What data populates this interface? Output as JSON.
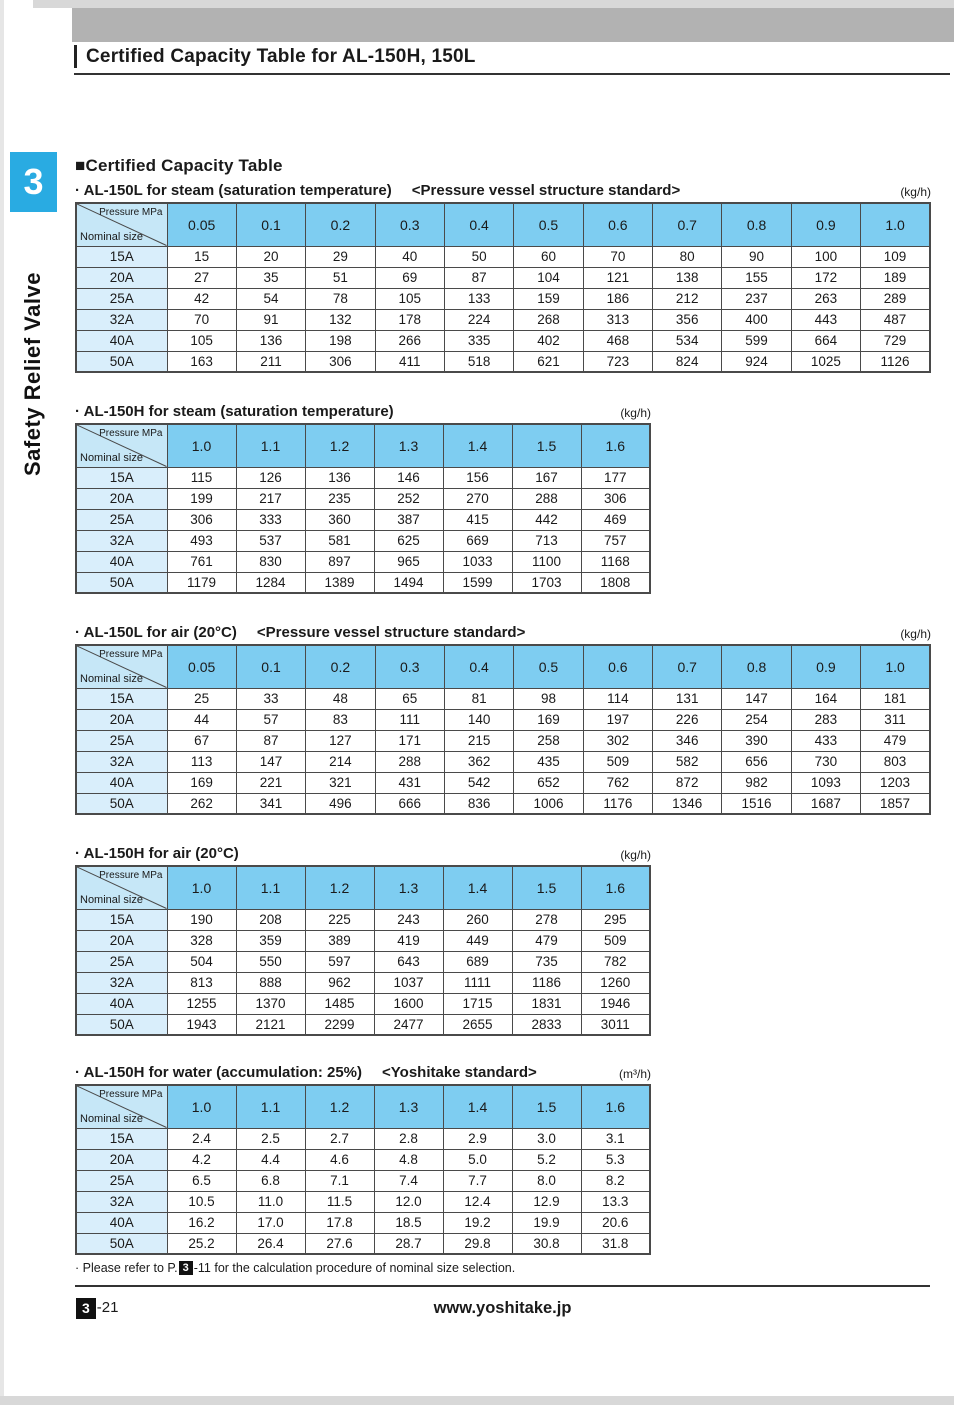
{
  "page_title": "Certified Capacity Table for AL-150H, 150L",
  "sidebar": {
    "chapter": "3",
    "label": "Safety Relief Valve"
  },
  "section_title": "■Certified Capacity Table",
  "table_header": {
    "top_label": "Pressure MPa",
    "bottom_label": "Nominal size"
  },
  "tables": [
    {
      "title": "· AL-150L for steam (saturation temperature)",
      "standard": "<Pressure vessel structure standard>",
      "unit": "(kg/h)",
      "wide": true,
      "columns": [
        "0.05",
        "0.1",
        "0.2",
        "0.3",
        "0.4",
        "0.5",
        "0.6",
        "0.7",
        "0.8",
        "0.9",
        "1.0"
      ],
      "rows": [
        {
          "size": "15A",
          "values": [
            "15",
            "20",
            "29",
            "40",
            "50",
            "60",
            "70",
            "80",
            "90",
            "100",
            "109"
          ]
        },
        {
          "size": "20A",
          "values": [
            "27",
            "35",
            "51",
            "69",
            "87",
            "104",
            "121",
            "138",
            "155",
            "172",
            "189"
          ]
        },
        {
          "size": "25A",
          "values": [
            "42",
            "54",
            "78",
            "105",
            "133",
            "159",
            "186",
            "212",
            "237",
            "263",
            "289"
          ]
        },
        {
          "size": "32A",
          "values": [
            "70",
            "91",
            "132",
            "178",
            "224",
            "268",
            "313",
            "356",
            "400",
            "443",
            "487"
          ]
        },
        {
          "size": "40A",
          "values": [
            "105",
            "136",
            "198",
            "266",
            "335",
            "402",
            "468",
            "534",
            "599",
            "664",
            "729"
          ]
        },
        {
          "size": "50A",
          "values": [
            "163",
            "211",
            "306",
            "411",
            "518",
            "621",
            "723",
            "824",
            "924",
            "1025",
            "1126"
          ]
        }
      ]
    },
    {
      "title": "· AL-150H for steam (saturation temperature)",
      "standard": "",
      "unit": "(kg/h)",
      "wide": false,
      "columns": [
        "1.0",
        "1.1",
        "1.2",
        "1.3",
        "1.4",
        "1.5",
        "1.6"
      ],
      "rows": [
        {
          "size": "15A",
          "values": [
            "115",
            "126",
            "136",
            "146",
            "156",
            "167",
            "177"
          ]
        },
        {
          "size": "20A",
          "values": [
            "199",
            "217",
            "235",
            "252",
            "270",
            "288",
            "306"
          ]
        },
        {
          "size": "25A",
          "values": [
            "306",
            "333",
            "360",
            "387",
            "415",
            "442",
            "469"
          ]
        },
        {
          "size": "32A",
          "values": [
            "493",
            "537",
            "581",
            "625",
            "669",
            "713",
            "757"
          ]
        },
        {
          "size": "40A",
          "values": [
            "761",
            "830",
            "897",
            "965",
            "1033",
            "1100",
            "1168"
          ]
        },
        {
          "size": "50A",
          "values": [
            "1179",
            "1284",
            "1389",
            "1494",
            "1599",
            "1703",
            "1808"
          ]
        }
      ]
    },
    {
      "title": "· AL-150L for air (20°C)",
      "standard": "<Pressure vessel structure standard>",
      "unit": "(kg/h)",
      "wide": true,
      "columns": [
        "0.05",
        "0.1",
        "0.2",
        "0.3",
        "0.4",
        "0.5",
        "0.6",
        "0.7",
        "0.8",
        "0.9",
        "1.0"
      ],
      "rows": [
        {
          "size": "15A",
          "values": [
            "25",
            "33",
            "48",
            "65",
            "81",
            "98",
            "114",
            "131",
            "147",
            "164",
            "181"
          ]
        },
        {
          "size": "20A",
          "values": [
            "44",
            "57",
            "83",
            "111",
            "140",
            "169",
            "197",
            "226",
            "254",
            "283",
            "311"
          ]
        },
        {
          "size": "25A",
          "values": [
            "67",
            "87",
            "127",
            "171",
            "215",
            "258",
            "302",
            "346",
            "390",
            "433",
            "479"
          ]
        },
        {
          "size": "32A",
          "values": [
            "113",
            "147",
            "214",
            "288",
            "362",
            "435",
            "509",
            "582",
            "656",
            "730",
            "803"
          ]
        },
        {
          "size": "40A",
          "values": [
            "169",
            "221",
            "321",
            "431",
            "542",
            "652",
            "762",
            "872",
            "982",
            "1093",
            "1203"
          ]
        },
        {
          "size": "50A",
          "values": [
            "262",
            "341",
            "496",
            "666",
            "836",
            "1006",
            "1176",
            "1346",
            "1516",
            "1687",
            "1857"
          ]
        }
      ]
    },
    {
      "title": "· AL-150H for air (20°C)",
      "standard": "",
      "unit": "(kg/h)",
      "wide": false,
      "columns": [
        "1.0",
        "1.1",
        "1.2",
        "1.3",
        "1.4",
        "1.5",
        "1.6"
      ],
      "rows": [
        {
          "size": "15A",
          "values": [
            "190",
            "208",
            "225",
            "243",
            "260",
            "278",
            "295"
          ]
        },
        {
          "size": "20A",
          "values": [
            "328",
            "359",
            "389",
            "419",
            "449",
            "479",
            "509"
          ]
        },
        {
          "size": "25A",
          "values": [
            "504",
            "550",
            "597",
            "643",
            "689",
            "735",
            "782"
          ]
        },
        {
          "size": "32A",
          "values": [
            "813",
            "888",
            "962",
            "1037",
            "1111",
            "1186",
            "1260"
          ]
        },
        {
          "size": "40A",
          "values": [
            "1255",
            "1370",
            "1485",
            "1600",
            "1715",
            "1831",
            "1946"
          ]
        },
        {
          "size": "50A",
          "values": [
            "1943",
            "2121",
            "2299",
            "2477",
            "2655",
            "2833",
            "3011"
          ]
        }
      ]
    },
    {
      "title": "· AL-150H for water (accumulation: 25%)",
      "standard": "<Yoshitake standard>",
      "unit": "(m³/h)",
      "wide": false,
      "columns": [
        "1.0",
        "1.1",
        "1.2",
        "1.3",
        "1.4",
        "1.5",
        "1.6"
      ],
      "rows": [
        {
          "size": "15A",
          "values": [
            "2.4",
            "2.5",
            "2.7",
            "2.8",
            "2.9",
            "3.0",
            "3.1"
          ]
        },
        {
          "size": "20A",
          "values": [
            "4.2",
            "4.4",
            "4.6",
            "4.8",
            "5.0",
            "5.2",
            "5.3"
          ]
        },
        {
          "size": "25A",
          "values": [
            "6.5",
            "6.8",
            "7.1",
            "7.4",
            "7.7",
            "8.0",
            "8.2"
          ]
        },
        {
          "size": "32A",
          "values": [
            "10.5",
            "11.0",
            "11.5",
            "12.0",
            "12.4",
            "12.9",
            "13.3"
          ]
        },
        {
          "size": "40A",
          "values": [
            "16.2",
            "17.0",
            "17.8",
            "18.5",
            "19.2",
            "19.9",
            "20.6"
          ]
        },
        {
          "size": "50A",
          "values": [
            "25.2",
            "26.4",
            "27.6",
            "28.7",
            "29.8",
            "30.8",
            "31.8"
          ]
        }
      ]
    }
  ],
  "footnote": {
    "prefix": "· Please refer to P.",
    "chapter": "3",
    "suffix": "-11 for the calculation procedure of nominal size selection."
  },
  "footer": {
    "chapter": "3",
    "page_suffix": "-21",
    "website": "www.yoshitake.jp"
  },
  "colors": {
    "accent_blue": "#29abe2",
    "header_cell": "#7ecdf1",
    "diagonal_cell": "#c6e7f7",
    "row_header_cell": "#d9eefb",
    "band_gray": "#b2b2b2"
  }
}
